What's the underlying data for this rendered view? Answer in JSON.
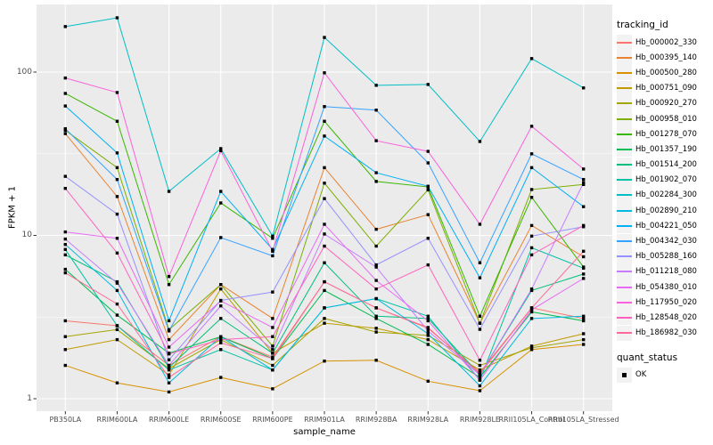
{
  "chart_data": {
    "type": "line",
    "title": "",
    "xlabel": "sample_name",
    "ylabel": "FPKM + 1",
    "y_scale": "log10",
    "ylim": [
      1,
      260
    ],
    "y_tick_values": [
      1,
      10,
      100
    ],
    "y_tick_labels": [
      "1",
      "10",
      "100"
    ],
    "y_minor_tick_values": [
      3.162,
      31.62
    ],
    "grid": true,
    "panel_bg": "#EBEBEB",
    "grid_color": "#FFFFFF",
    "tick_text_color": "#4D4D4D",
    "point_color": "#000000",
    "point_shape": "filled-square",
    "legend_position": "right",
    "categories": [
      "PB350LA",
      "RRIM600LA",
      "RRIM600LE",
      "RRIM600SE",
      "RRIM600PE",
      "RRIM901LA",
      "RRIM928BA",
      "RRIM928LA",
      "RRIM928LE",
      "RRII105LA_Control",
      "RRII105LA_Stressed"
    ],
    "series": [
      {
        "name": "Hb_000002_330",
        "color": "#F8766D",
        "values": [
          3.0,
          2.8,
          1.6,
          2.4,
          1.8,
          5.2,
          3.6,
          2.7,
          1.45,
          3.6,
          3.1
        ]
      },
      {
        "name": "Hb_000395_140",
        "color": "#EA8331",
        "values": [
          42,
          17.3,
          2.3,
          5.0,
          3.1,
          26,
          10.9,
          13.4,
          2.9,
          11.5,
          7.4
        ]
      },
      {
        "name": "Hb_000500_280",
        "color": "#D89000",
        "values": [
          1.6,
          1.25,
          1.1,
          1.35,
          1.15,
          1.7,
          1.72,
          1.28,
          1.12,
          2.0,
          2.15
        ]
      },
      {
        "name": "Hb_000751_090",
        "color": "#C09B00",
        "values": [
          2.0,
          2.3,
          1.4,
          4.7,
          1.9,
          2.9,
          2.7,
          2.3,
          1.5,
          2.1,
          2.5
        ]
      },
      {
        "name": "Hb_000920_270",
        "color": "#A3A500",
        "values": [
          2.4,
          2.65,
          1.53,
          2.3,
          1.6,
          3.1,
          2.56,
          2.44,
          1.6,
          2.05,
          2.3
        ]
      },
      {
        "name": "Hb_000958_010",
        "color": "#7CAE00",
        "values": [
          44,
          26,
          2.65,
          5.0,
          2.1,
          20.9,
          8.6,
          19,
          2.9,
          19.1,
          20.5
        ]
      },
      {
        "name": "Hb_001278_070",
        "color": "#39B600",
        "values": [
          74,
          50,
          5.0,
          15.8,
          9.6,
          50,
          21.4,
          19.8,
          3.2,
          17.1,
          6.4
        ]
      },
      {
        "name": "Hb_001357_190",
        "color": "#00BB4E",
        "values": [
          6.2,
          3.25,
          1.9,
          2.4,
          1.76,
          4.6,
          3.1,
          2.15,
          1.35,
          3.4,
          3.0
        ]
      },
      {
        "name": "Hb_001514_200",
        "color": "#00BF7D",
        "values": [
          7.6,
          5.2,
          1.55,
          3.1,
          1.9,
          6.8,
          3.2,
          3.1,
          1.4,
          4.6,
          5.8
        ]
      },
      {
        "name": "Hb_001902_070",
        "color": "#00C1A3",
        "values": [
          8.2,
          2.8,
          1.5,
          2.0,
          1.5,
          3.6,
          4.1,
          3.2,
          1.3,
          8.4,
          6.3
        ]
      },
      {
        "name": "Hb_002284_300",
        "color": "#00BFC4",
        "values": [
          190,
          215,
          18.6,
          34,
          9.9,
          163,
          83,
          84,
          37.6,
          121,
          80
        ]
      },
      {
        "name": "Hb_002890_210",
        "color": "#00BAE0",
        "values": [
          8.8,
          4.6,
          1.25,
          2.4,
          1.5,
          3.6,
          4.1,
          2.5,
          1.2,
          3.1,
          3.2
        ]
      },
      {
        "name": "Hb_004221_050",
        "color": "#00B0F6",
        "values": [
          62,
          32,
          3.0,
          18.6,
          8.2,
          40.6,
          24.2,
          20,
          5.5,
          26,
          15
        ]
      },
      {
        "name": "Hb_004342_030",
        "color": "#35A2FF",
        "values": [
          45,
          22,
          2.6,
          9.7,
          7.5,
          61.5,
          58.5,
          27.8,
          6.8,
          31.6,
          22
        ]
      },
      {
        "name": "Hb_005288_160",
        "color": "#9590FF",
        "values": [
          23,
          13.5,
          1.73,
          4.0,
          4.5,
          16.8,
          6.6,
          9.6,
          2.66,
          9.9,
          11.3
        ]
      },
      {
        "name": "Hb_011218_080",
        "color": "#C77CFF",
        "values": [
          9.5,
          5.1,
          1.6,
          3.7,
          2.0,
          10.2,
          6.4,
          2.6,
          1.4,
          4.7,
          21
        ]
      },
      {
        "name": "Hb_054380_010",
        "color": "#E76BF3",
        "values": [
          10.5,
          9.6,
          2.07,
          3.97,
          2.73,
          11.7,
          5.3,
          3.0,
          1.3,
          3.5,
          5.45
        ]
      },
      {
        "name": "Hb_117950_020",
        "color": "#FA62DB",
        "values": [
          92,
          75,
          5.6,
          33,
          8.0,
          99,
          38,
          32.7,
          11.7,
          46.6,
          25.5
        ]
      },
      {
        "name": "Hb_128548_020",
        "color": "#FF62BC",
        "values": [
          19.4,
          7.8,
          1.88,
          2.3,
          2.4,
          8.6,
          4.7,
          6.6,
          1.72,
          7.6,
          11.5
        ]
      },
      {
        "name": "Hb_186982_030",
        "color": "#FF6A98",
        "values": [
          5.9,
          3.8,
          1.35,
          2.2,
          1.76,
          5.2,
          3.6,
          2.73,
          1.42,
          3.6,
          8.0
        ]
      }
    ]
  },
  "legend": {
    "tracking_title": "tracking_id",
    "quant_title": "quant_status",
    "quant_items": [
      {
        "label": "OK"
      }
    ]
  }
}
